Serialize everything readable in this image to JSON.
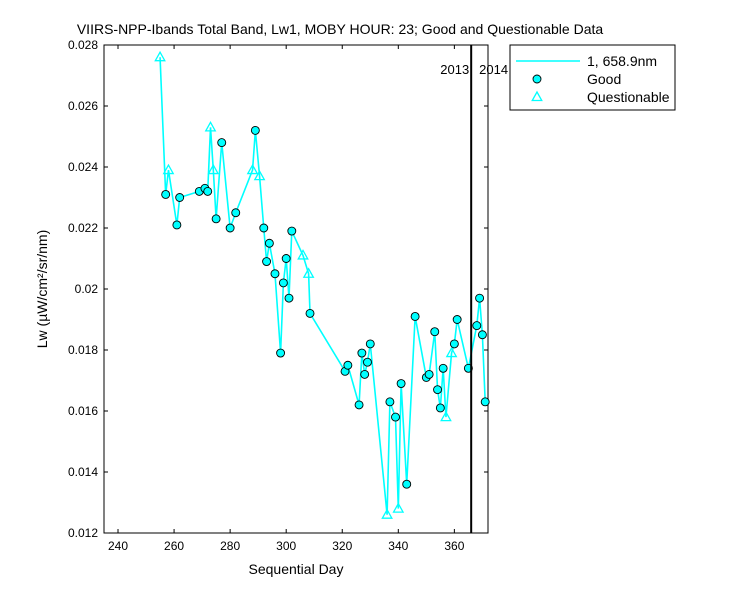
{
  "chart_data": {
    "type": "line",
    "title": "VIIRS-NPP-Ibands Total Band,  Lw1, MOBY HOUR: 23;  Good and Questionable Data",
    "xlabel": "Sequential Day",
    "ylabel": "Lw (µW/cm²/sr/nm)",
    "xlim": [
      235,
      372
    ],
    "ylim": [
      0.012,
      0.028
    ],
    "xticks": [
      240,
      260,
      280,
      300,
      320,
      340,
      360
    ],
    "yticks": [
      0.012,
      0.014,
      0.016,
      0.018,
      0.02,
      0.022,
      0.024,
      0.026,
      0.028
    ],
    "ytick_labels": [
      "0.012",
      "0.014",
      "0.016",
      "0.018",
      "0.02",
      "0.022",
      "0.024",
      "0.026",
      "0.028"
    ],
    "grid": false,
    "legend_position": "outside-top-right",
    "colors": {
      "series": "#00ffff",
      "marker_fill": "#00ffff",
      "marker_edge": "#000000"
    },
    "year_divider": {
      "x": 366,
      "label_left": "2013",
      "label_right": "2014"
    },
    "series": [
      {
        "name": "1, 658.9nm",
        "points": [
          {
            "x": 255.0,
            "y": 0.0276,
            "q": "Questionable"
          },
          {
            "x": 257.0,
            "y": 0.0231,
            "q": "Good"
          },
          {
            "x": 258.0,
            "y": 0.0239,
            "q": "Questionable"
          },
          {
            "x": 261.0,
            "y": 0.0221,
            "q": "Good"
          },
          {
            "x": 262.0,
            "y": 0.023,
            "q": "Good"
          },
          {
            "x": 269.0,
            "y": 0.0232,
            "q": "Good"
          },
          {
            "x": 271.0,
            "y": 0.0233,
            "q": "Good"
          },
          {
            "x": 272.0,
            "y": 0.0232,
            "q": "Good"
          },
          {
            "x": 273.0,
            "y": 0.0253,
            "q": "Questionable"
          },
          {
            "x": 274.0,
            "y": 0.0239,
            "q": "Questionable"
          },
          {
            "x": 275.0,
            "y": 0.0223,
            "q": "Good"
          },
          {
            "x": 277.0,
            "y": 0.0248,
            "q": "Good"
          },
          {
            "x": 280.0,
            "y": 0.022,
            "q": "Good"
          },
          {
            "x": 282.0,
            "y": 0.0225,
            "q": "Good"
          },
          {
            "x": 288.0,
            "y": 0.0239,
            "q": "Questionable"
          },
          {
            "x": 289.0,
            "y": 0.0252,
            "q": "Good"
          },
          {
            "x": 290.5,
            "y": 0.0237,
            "q": "Questionable"
          },
          {
            "x": 292.0,
            "y": 0.022,
            "q": "Good"
          },
          {
            "x": 293.0,
            "y": 0.0209,
            "q": "Good"
          },
          {
            "x": 294.0,
            "y": 0.0215,
            "q": "Good"
          },
          {
            "x": 296.0,
            "y": 0.0205,
            "q": "Good"
          },
          {
            "x": 298.0,
            "y": 0.0179,
            "q": "Good"
          },
          {
            "x": 299.0,
            "y": 0.0202,
            "q": "Good"
          },
          {
            "x": 300.0,
            "y": 0.021,
            "q": "Good"
          },
          {
            "x": 301.0,
            "y": 0.0197,
            "q": "Good"
          },
          {
            "x": 302.0,
            "y": 0.0219,
            "q": "Good"
          },
          {
            "x": 306.0,
            "y": 0.0211,
            "q": "Questionable"
          },
          {
            "x": 308.0,
            "y": 0.0205,
            "q": "Questionable"
          },
          {
            "x": 308.5,
            "y": 0.0192,
            "q": "Good"
          },
          {
            "x": 321.0,
            "y": 0.0173,
            "q": "Good"
          },
          {
            "x": 322.0,
            "y": 0.0175,
            "q": "Good"
          },
          {
            "x": 326.0,
            "y": 0.0162,
            "q": "Good"
          },
          {
            "x": 327.0,
            "y": 0.0179,
            "q": "Good"
          },
          {
            "x": 328.0,
            "y": 0.0172,
            "q": "Good"
          },
          {
            "x": 329.0,
            "y": 0.0176,
            "q": "Good"
          },
          {
            "x": 330.0,
            "y": 0.0182,
            "q": "Good"
          },
          {
            "x": 336.0,
            "y": 0.0126,
            "q": "Questionable"
          },
          {
            "x": 337.0,
            "y": 0.0163,
            "q": "Good"
          },
          {
            "x": 339.0,
            "y": 0.0158,
            "q": "Good"
          },
          {
            "x": 340.0,
            "y": 0.0128,
            "q": "Questionable"
          },
          {
            "x": 341.0,
            "y": 0.0169,
            "q": "Good"
          },
          {
            "x": 343.0,
            "y": 0.0136,
            "q": "Good"
          },
          {
            "x": 346.0,
            "y": 0.0191,
            "q": "Good"
          },
          {
            "x": 350.0,
            "y": 0.0171,
            "q": "Good"
          },
          {
            "x": 351.0,
            "y": 0.0172,
            "q": "Good"
          },
          {
            "x": 353.0,
            "y": 0.0186,
            "q": "Good"
          },
          {
            "x": 354.0,
            "y": 0.0167,
            "q": "Good"
          },
          {
            "x": 355.0,
            "y": 0.0161,
            "q": "Good"
          },
          {
            "x": 356.0,
            "y": 0.0174,
            "q": "Good"
          },
          {
            "x": 357.0,
            "y": 0.0158,
            "q": "Questionable"
          },
          {
            "x": 359.0,
            "y": 0.0179,
            "q": "Questionable"
          },
          {
            "x": 360.0,
            "y": 0.0182,
            "q": "Good"
          },
          {
            "x": 361.0,
            "y": 0.019,
            "q": "Good"
          },
          {
            "x": 365.0,
            "y": 0.0174,
            "q": "Good"
          },
          {
            "x": 368.0,
            "y": 0.0188,
            "q": "Good"
          },
          {
            "x": 369.0,
            "y": 0.0197,
            "q": "Good"
          },
          {
            "x": 370.0,
            "y": 0.0185,
            "q": "Good"
          },
          {
            "x": 371.0,
            "y": 0.0163,
            "q": "Good"
          }
        ]
      }
    ],
    "legend": [
      {
        "label": "1, 658.9nm",
        "kind": "line"
      },
      {
        "label": "Good",
        "kind": "circle"
      },
      {
        "label": "Questionable",
        "kind": "triangle"
      }
    ]
  }
}
